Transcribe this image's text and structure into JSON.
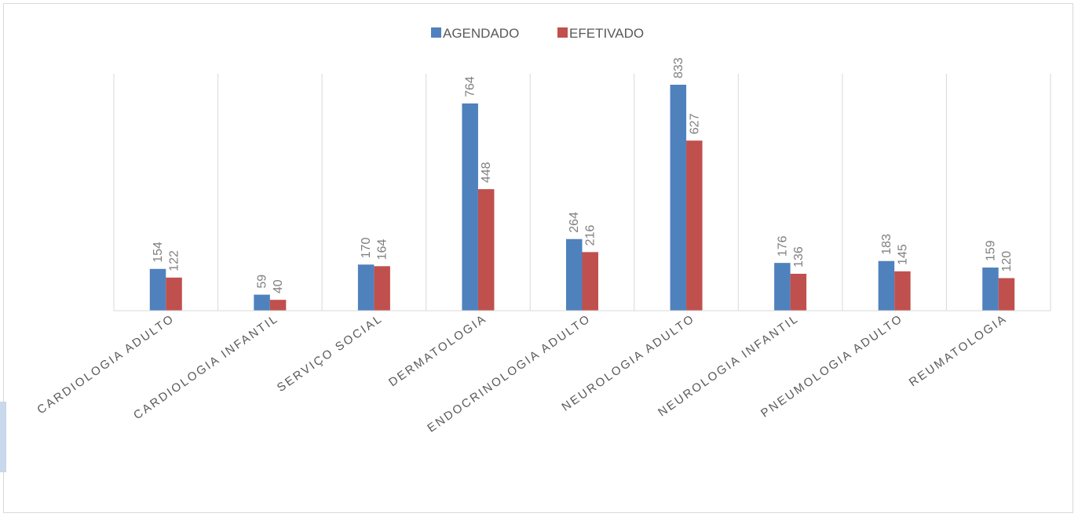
{
  "chart_data": {
    "type": "bar",
    "categories": [
      "CARDIOLOGIA ADULTO",
      "CARDIOLOGIA INFANTIL",
      "SERVIÇO SOCIAL",
      "DERMATOLOGIA",
      "ENDOCRINOLOGIA ADULTO",
      "NEUROLOGIA ADULTO",
      "NEUROLOGIA INFANTIL",
      "PNEUMOLOGIA ADULTO",
      "REUMATOLOGIA"
    ],
    "series": [
      {
        "name": "AGENDADO",
        "color": "#4f81bd",
        "values": [
          154,
          59,
          170,
          764,
          264,
          833,
          176,
          183,
          159
        ]
      },
      {
        "name": "EFETIVADO",
        "color": "#c0504d",
        "values": [
          122,
          40,
          164,
          448,
          216,
          627,
          136,
          145,
          120
        ]
      }
    ],
    "ylim": [
      0,
      850
    ],
    "legend": "top",
    "data_labels": true,
    "grid": "vertical-separators"
  }
}
